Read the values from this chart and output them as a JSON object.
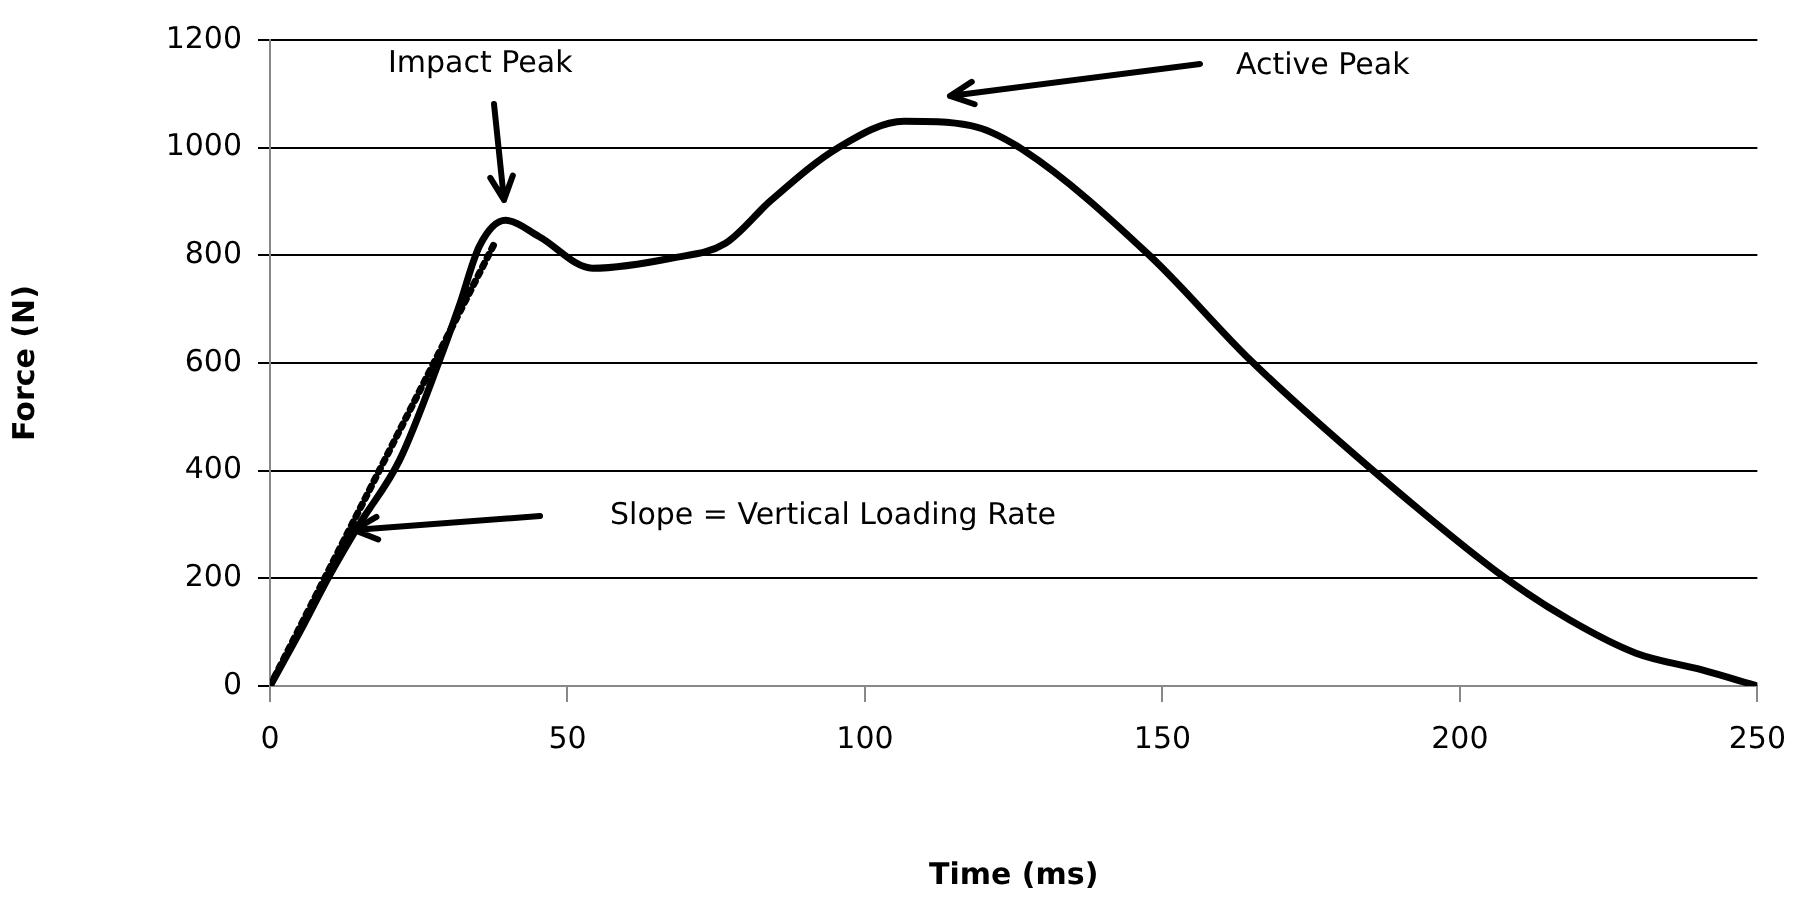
{
  "chart_data": {
    "type": "line",
    "xlabel": "Time (ms)",
    "ylabel": "Force (N)",
    "xlim": [
      0,
      250
    ],
    "xticks": [
      0,
      50,
      100,
      150,
      200,
      250
    ],
    "ylim": [
      0,
      1200
    ],
    "yticks": [
      0,
      200,
      400,
      600,
      800,
      1000,
      1200
    ],
    "grid": "y",
    "legend": false,
    "marker": "none",
    "line_style": "solid",
    "series": [
      {
        "x": [
          0,
          5,
          10,
          15,
          21.8,
          28.5,
          31.8,
          35.2,
          39.6,
          45.2,
          54.2,
          67.6,
          76.5,
          84.3,
          95.5,
          106.6,
          117.8,
          126.7,
          148,
          164.8,
          184.9,
          207.2,
          218.4,
          229.6,
          240.7,
          250
        ],
        "values": [
          0,
          100,
          205,
          300,
          420,
          605,
          706,
          817,
          865,
          835,
          776,
          795,
          822,
          903,
          1000,
          1049,
          1041,
          995,
          798,
          605,
          405,
          204,
          123,
          61,
          30,
          0
        ],
        "color": "#000000"
      },
      {
        "type": "line",
        "x": [
          0,
          38
        ],
        "values": [
          0,
          828
        ],
        "color": "#000000",
        "line_style": "dotted"
      }
    ],
    "annotations": [
      "Impact Peak",
      "Active Peak",
      "Slope = Vertical Loading Rate"
    ]
  }
}
